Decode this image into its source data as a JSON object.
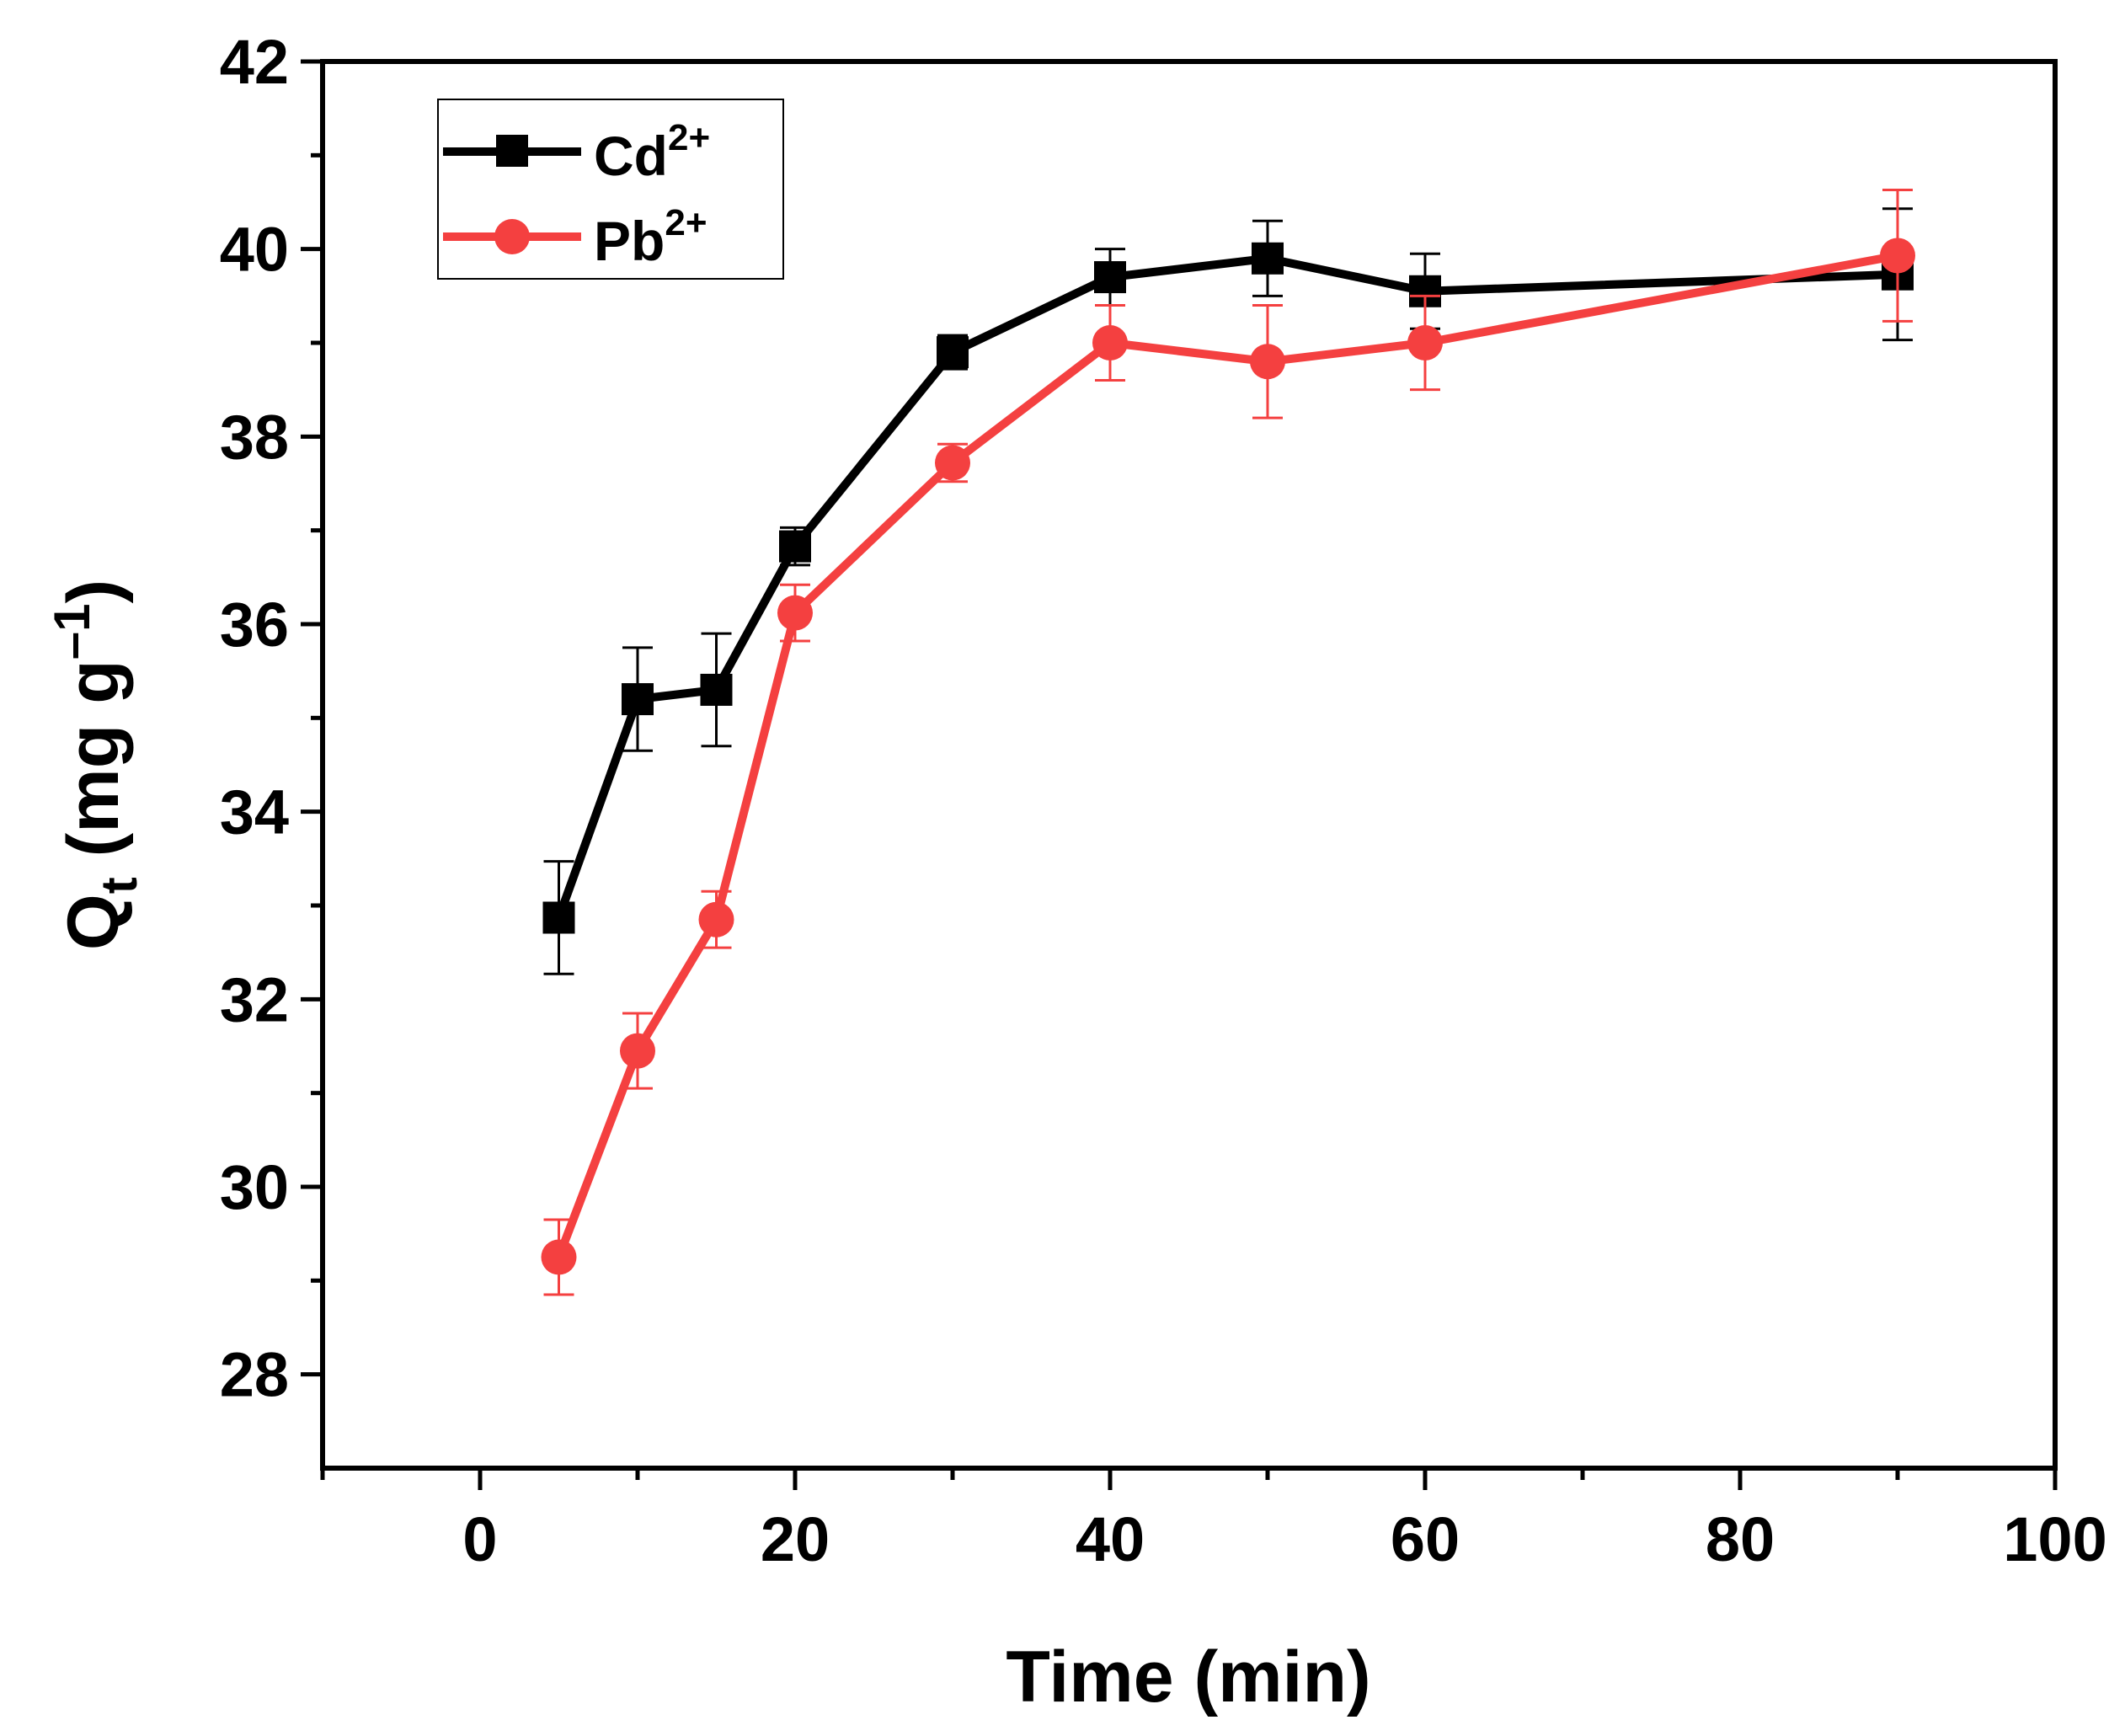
{
  "chart_data": {
    "type": "line",
    "xlabel": "Time (min)",
    "ylabel": {
      "main": "Q",
      "sub": "t",
      "units": " (mg g",
      "sup": "–1",
      "close": ")"
    },
    "xlim": [
      -10,
      100
    ],
    "ylim": [
      27,
      42
    ],
    "xticks": [
      0,
      20,
      40,
      60,
      80,
      100
    ],
    "yticks": [
      28,
      30,
      32,
      34,
      36,
      38,
      40,
      42
    ],
    "grid": false,
    "legend_position": "top-left",
    "series": [
      {
        "name": "Cd",
        "name_sup": "2+",
        "color": "#000000",
        "marker": "square",
        "x": [
          5,
          10,
          15,
          20,
          30,
          40,
          50,
          60,
          90
        ],
        "y": [
          32.87,
          35.2,
          35.3,
          36.83,
          38.9,
          39.7,
          39.9,
          39.55,
          39.73
        ],
        "err": [
          0.6,
          0.55,
          0.6,
          0.2,
          0.18,
          0.3,
          0.4,
          0.4,
          0.7
        ]
      },
      {
        "name": "Pb",
        "name_sup": "2+",
        "color": "#f44040",
        "marker": "circle",
        "x": [
          5,
          10,
          15,
          20,
          30,
          40,
          50,
          60,
          90
        ],
        "y": [
          29.25,
          31.45,
          32.85,
          36.12,
          37.72,
          39.0,
          38.8,
          39.0,
          39.93
        ],
        "err": [
          0.4,
          0.4,
          0.3,
          0.3,
          0.2,
          0.4,
          0.6,
          0.5,
          0.7
        ]
      }
    ]
  }
}
